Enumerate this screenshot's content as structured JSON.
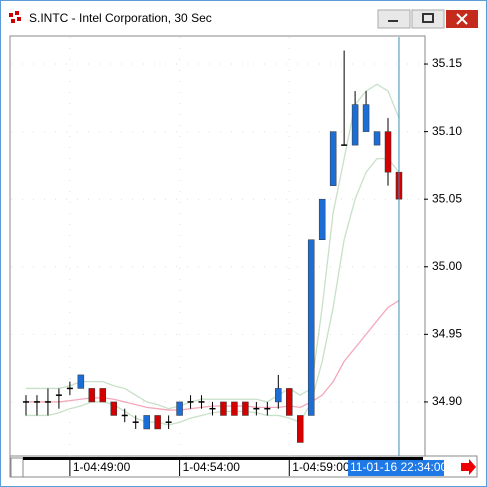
{
  "chart_data": {
    "type": "candlestick",
    "title": "S.INTC - Intel Corporation, 30 Sec",
    "ylim": [
      34.86,
      35.17
    ],
    "yticks": [
      {
        "value": 34.9,
        "label": "34.90"
      },
      34.95,
      {
        "value": 35.0,
        "label": "35.00"
      },
      35.05,
      {
        "value": 35.1,
        "label": "35.10"
      },
      35.15
    ],
    "grid": true,
    "up_color": "#1c6ed6",
    "down_color": "#d40000",
    "doji_color": "#000000",
    "xticks": [
      {
        "value": 4,
        "label": "1-04:49:00"
      },
      {
        "value": 14,
        "label": "1-04:54:00"
      },
      {
        "value": 24,
        "label": "1-04:59:00"
      }
    ],
    "cursor": {
      "value": 34,
      "label": "11-01-16 22:34:00"
    },
    "open": [
      34.9,
      34.9,
      34.9,
      34.905,
      34.91,
      34.91,
      34.91,
      34.91,
      34.9,
      34.89,
      34.885,
      34.88,
      34.89,
      34.885,
      34.89,
      34.9,
      34.9,
      34.895,
      34.9,
      34.9,
      34.9,
      34.895,
      34.895,
      34.9,
      34.91,
      34.89,
      34.89,
      35.02,
      35.06,
      35.09,
      35.09,
      35.1,
      35.09,
      35.1,
      35.07
    ],
    "high": [
      34.905,
      34.905,
      34.91,
      34.91,
      34.915,
      34.92,
      34.91,
      34.91,
      34.9,
      34.895,
      34.89,
      34.89,
      34.89,
      34.89,
      34.9,
      34.905,
      34.905,
      34.9,
      34.9,
      34.9,
      34.9,
      34.9,
      34.9,
      34.92,
      34.91,
      34.89,
      35.02,
      35.05,
      35.1,
      35.16,
      35.13,
      35.13,
      35.1,
      35.11,
      35.07
    ],
    "low": [
      34.89,
      34.89,
      34.89,
      34.895,
      34.905,
      34.91,
      34.9,
      34.9,
      34.89,
      34.885,
      34.88,
      34.88,
      34.88,
      34.88,
      34.89,
      34.895,
      34.895,
      34.89,
      34.89,
      34.89,
      34.89,
      34.89,
      34.89,
      34.895,
      34.89,
      34.87,
      34.89,
      35.02,
      35.06,
      35.09,
      35.09,
      35.1,
      35.09,
      35.06,
      35.05
    ],
    "close": [
      34.9,
      34.9,
      34.9,
      34.905,
      34.91,
      34.92,
      34.9,
      34.9,
      34.89,
      34.89,
      34.885,
      34.89,
      34.88,
      34.885,
      34.9,
      34.9,
      34.9,
      34.895,
      34.89,
      34.89,
      34.89,
      34.895,
      34.895,
      34.91,
      34.89,
      34.87,
      35.02,
      35.05,
      35.1,
      35.09,
      35.12,
      35.12,
      35.1,
      35.07,
      35.05
    ],
    "overlays": [
      {
        "color": "#c8e0c8",
        "values": [
          34.91,
          34.91,
          34.91,
          34.91,
          34.912,
          34.915,
          34.915,
          34.915,
          34.912,
          34.91,
          34.905,
          34.9,
          34.898,
          34.895,
          34.897,
          34.9,
          34.902,
          34.902,
          34.902,
          34.902,
          34.902,
          34.902,
          34.9,
          34.905,
          34.91,
          34.905,
          34.91,
          34.97,
          35.04,
          35.08,
          35.12,
          35.13,
          35.135,
          35.13,
          35.11
        ]
      },
      {
        "color": "#c8e0c8",
        "values": [
          34.89,
          34.89,
          34.89,
          34.892,
          34.895,
          34.897,
          34.9,
          34.9,
          34.898,
          34.893,
          34.888,
          34.885,
          34.885,
          34.883,
          34.885,
          34.888,
          34.89,
          34.892,
          34.893,
          34.893,
          34.893,
          34.892,
          34.89,
          34.89,
          34.888,
          34.885,
          34.9,
          34.93,
          34.97,
          35.02,
          35.05,
          35.07,
          35.08,
          35.08,
          35.07
        ]
      },
      {
        "color": "#f4a7b9",
        "values": [
          34.9,
          34.9,
          34.9,
          34.9,
          34.901,
          34.902,
          34.903,
          34.903,
          34.902,
          34.9,
          34.898,
          34.896,
          34.895,
          34.894,
          34.894,
          34.895,
          34.896,
          34.897,
          34.897,
          34.897,
          34.897,
          34.896,
          34.896,
          34.896,
          34.897,
          34.896,
          34.9,
          34.905,
          34.915,
          34.93,
          34.94,
          34.95,
          34.96,
          34.97,
          34.975
        ]
      }
    ]
  }
}
